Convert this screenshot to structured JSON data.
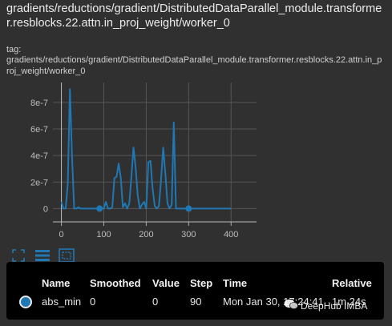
{
  "card": {
    "title": "gradients/reductions/gradient/DistributedDataParallel_module.transformer.resblocks.22.attn.in_proj_weight/worker_0",
    "tag_label": "tag:",
    "tag_value": "gradients/reductions/gradient/DistributedDataParallel_module.transformer.resblocks.22.attn.in_proj_weight/worker_0"
  },
  "chart_data": {
    "type": "line",
    "title": "",
    "xlabel": "",
    "ylabel": "",
    "xlim": [
      -20,
      460
    ],
    "ylim": [
      -1e-07,
      9.5e-07
    ],
    "xticks": [
      0,
      100,
      200,
      300,
      400
    ],
    "xtick_labels": [
      "0",
      "100",
      "200",
      "300",
      "400"
    ],
    "yticks": [
      0,
      2e-07,
      4e-07,
      6e-07,
      8e-07
    ],
    "ytick_labels": [
      "0",
      "2e-7",
      "4e-7",
      "6e-7",
      "8e-7"
    ],
    "grid": true,
    "series": [
      {
        "color": "#1f77b4",
        "x": [
          0,
          5,
          10,
          15,
          20,
          25,
          30,
          35,
          40,
          45,
          50,
          60,
          70,
          80,
          90,
          100,
          105,
          110,
          115,
          120,
          125,
          130,
          135,
          140,
          145,
          150,
          155,
          160,
          165,
          170,
          175,
          180,
          185,
          190,
          195,
          200,
          205,
          210,
          215,
          220,
          225,
          230,
          235,
          240,
          245,
          250,
          255,
          260,
          265,
          270,
          275,
          280,
          285,
          290,
          295,
          300,
          305,
          310,
          315,
          320,
          325,
          330,
          340,
          360,
          380,
          400
        ],
        "y": [
          5e-08,
          0,
          0,
          1.8e-07,
          9e-07,
          4e-07,
          0,
          0,
          1e-08,
          0,
          0,
          0,
          0,
          0,
          0,
          0,
          5e-08,
          0,
          0,
          1e-08,
          2.3e-07,
          2.4e-07,
          3.4e-07,
          2.3e-07,
          1e-08,
          4e-08,
          0,
          4e-08,
          2.4e-07,
          4.6e-07,
          3.1e-07,
          1e-07,
          0,
          3e-08,
          5e-08,
          0,
          3.5e-07,
          3.6e-07,
          1.5e-07,
          2e-08,
          0,
          2e-08,
          2.2e-07,
          4.6e-07,
          2.7e-07,
          4e-08,
          0,
          3e-08,
          6.5e-07,
          0,
          0,
          0,
          0,
          0,
          0,
          0,
          0,
          0,
          0,
          0,
          0,
          0,
          0,
          0,
          0,
          0
        ]
      }
    ],
    "markers": [
      {
        "x": 90,
        "y": 0
      },
      {
        "x": 300,
        "y": 0
      }
    ]
  },
  "toolbar": {
    "fit_icon": "fit-domain-icon",
    "log_icon": "log-scale-icon",
    "select_icon": "selection-icon"
  },
  "tooltip": {
    "headers": {
      "name": "Name",
      "smoothed": "Smoothed",
      "value": "Value",
      "step": "Step",
      "time": "Time",
      "relative": "Relative"
    },
    "row": {
      "color": "#1f77b4",
      "name": "abs_min",
      "smoothed": "0",
      "value": "0",
      "step": "90",
      "time": "Mon Jan 30, 17:24:41",
      "relative": "1m 24s"
    }
  },
  "watermark": {
    "text": "DeepHub IMBA"
  }
}
